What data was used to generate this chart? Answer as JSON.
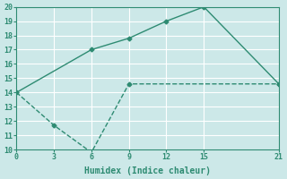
{
  "xlabel": "Humidex (Indice chaleur)",
  "bg_color": "#cce8e8",
  "grid_color": "#ffffff",
  "line_color": "#2e8b72",
  "xlim": [
    0,
    21
  ],
  "ylim": [
    10,
    20
  ],
  "xticks": [
    0,
    3,
    6,
    9,
    12,
    15,
    21
  ],
  "yticks": [
    10,
    11,
    12,
    13,
    14,
    15,
    16,
    17,
    18,
    19,
    20
  ],
  "solid_x": [
    0,
    6,
    9,
    12,
    15,
    21
  ],
  "solid_y": [
    14.0,
    17.0,
    17.8,
    19.0,
    20.0,
    14.6
  ],
  "dashed_x": [
    0,
    3,
    6,
    9,
    21
  ],
  "dashed_y": [
    14.0,
    11.7,
    9.8,
    14.6,
    14.6
  ]
}
